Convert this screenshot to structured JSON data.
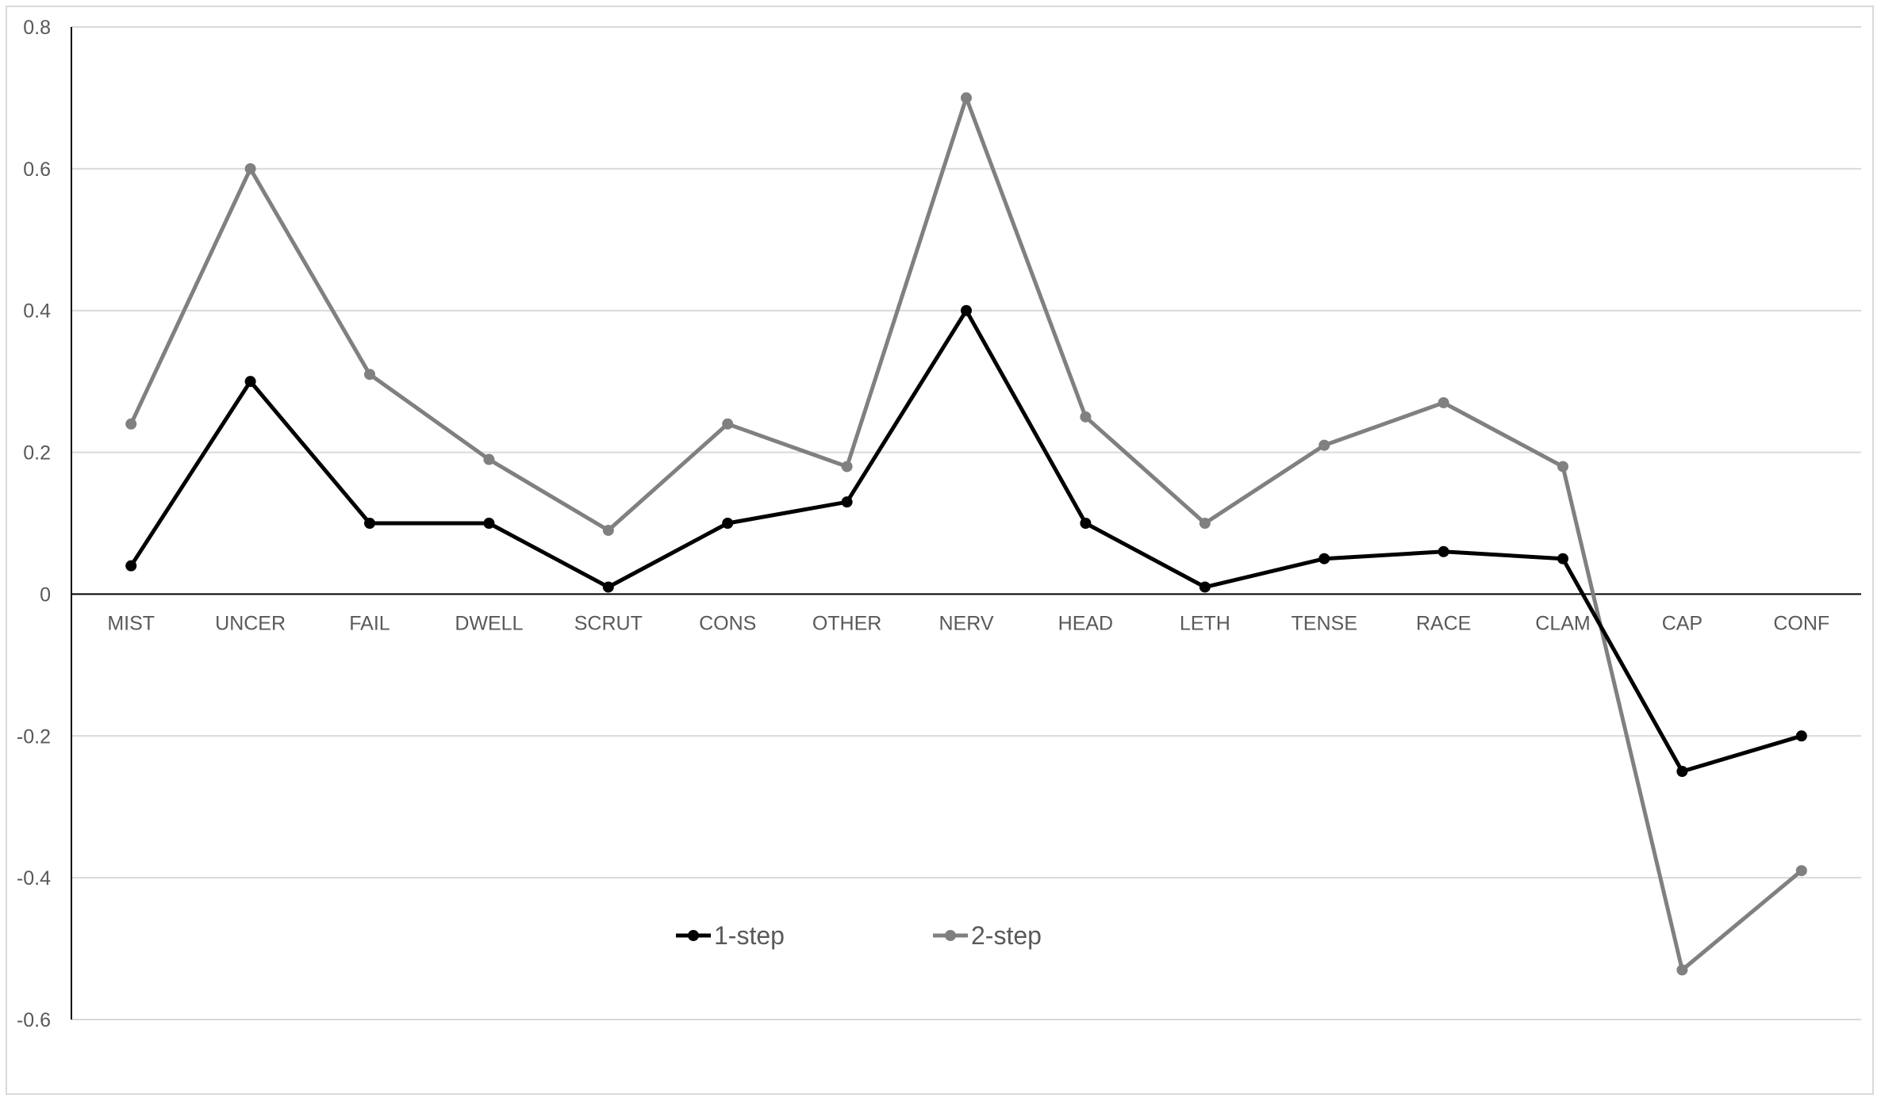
{
  "chart_data": {
    "type": "line",
    "title": "",
    "xlabel": "",
    "ylabel": "",
    "categories": [
      "MIST",
      "UNCER",
      "FAIL",
      "DWELL",
      "SCRUT",
      "CONS",
      "OTHER",
      "NERV",
      "HEAD",
      "LETH",
      "TENSE",
      "RACE",
      "CLAM",
      "CAP",
      "CONF"
    ],
    "y_ticks": [
      "0.8",
      "0.6",
      "0.4",
      "0.2",
      "0",
      "-0.2",
      "-0.4",
      "-0.6"
    ],
    "y_tick_values": [
      0.8,
      0.6,
      0.4,
      0.2,
      0,
      -0.2,
      -0.4,
      -0.6
    ],
    "ylim": [
      -0.6,
      0.8
    ],
    "grid": true,
    "legend_position": "bottom-center",
    "series": [
      {
        "name": "1-step",
        "color": "#000000",
        "values": [
          0.04,
          0.3,
          0.1,
          0.1,
          0.01,
          0.1,
          0.13,
          0.4,
          0.1,
          0.01,
          0.05,
          0.06,
          0.05,
          -0.25,
          -0.2
        ]
      },
      {
        "name": "2-step",
        "color": "#808080",
        "values": [
          0.24,
          0.6,
          0.31,
          0.19,
          0.09,
          0.24,
          0.18,
          0.7,
          0.25,
          0.1,
          0.21,
          0.27,
          0.18,
          -0.53,
          -0.39
        ]
      }
    ],
    "colors": {
      "gridline": "#d9d9d9",
      "axis": "#000000",
      "tick_text": "#595959"
    }
  }
}
